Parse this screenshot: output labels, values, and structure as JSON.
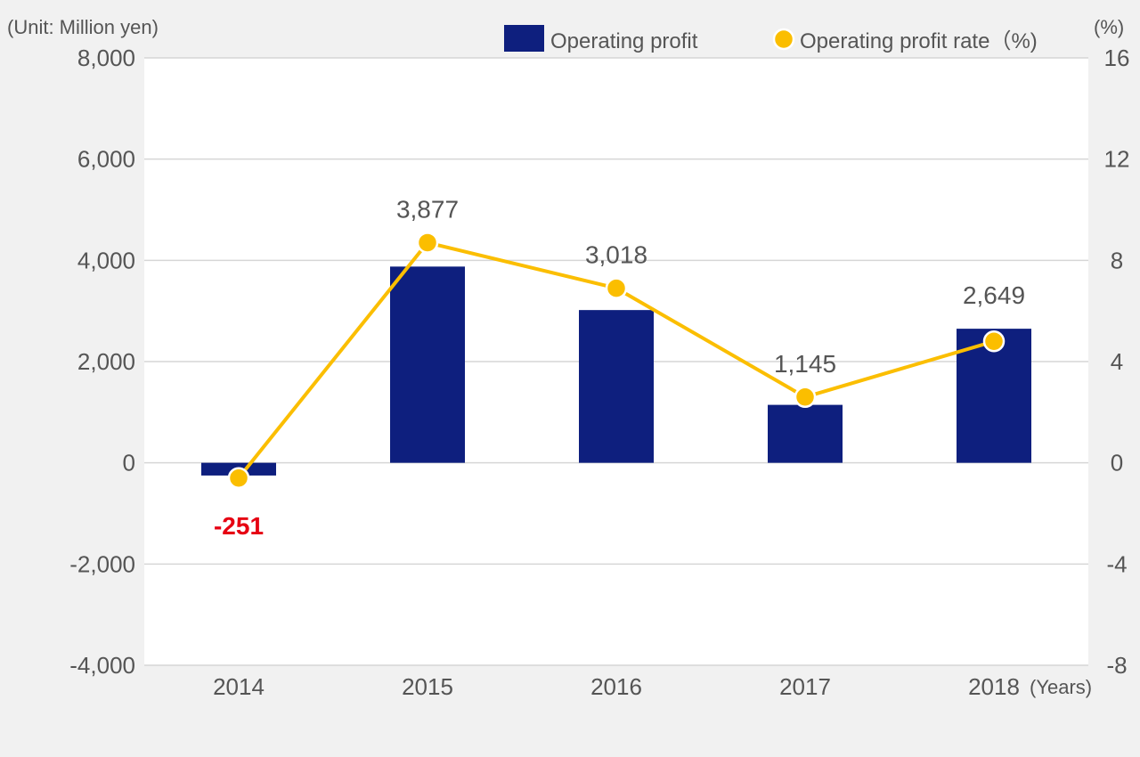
{
  "chart_data": {
    "type": "bar+line",
    "unit_label": "(Unit: Million yen)",
    "right_unit_label": "(%)",
    "x_unit_label": "(Years)",
    "categories": [
      "2014",
      "2015",
      "2016",
      "2017",
      "2018"
    ],
    "series": [
      {
        "name": "Operating profit",
        "type": "bar",
        "axis": "left",
        "values": [
          -251,
          3877,
          3018,
          1145,
          2649
        ],
        "labels": [
          "-251",
          "3,877",
          "3,018",
          "1,145",
          "2,649"
        ]
      },
      {
        "name": "Operating profit rate（%)",
        "type": "line",
        "axis": "right",
        "values": [
          -0.6,
          8.7,
          6.9,
          2.6,
          4.8
        ]
      }
    ],
    "left_axis": {
      "ylim": [
        -4000,
        8000
      ],
      "ticks": [
        -4000,
        -2000,
        0,
        2000,
        4000,
        6000,
        8000
      ],
      "tick_labels": [
        "-4,000",
        "-2,000",
        "0",
        "2,000",
        "4,000",
        "6,000",
        "8,000"
      ]
    },
    "right_axis": {
      "ylim": [
        -8,
        16
      ],
      "ticks": [
        -8,
        -4,
        0,
        4,
        8,
        12,
        16
      ],
      "tick_labels": [
        "-8",
        "-4",
        "0",
        "4",
        "8",
        "12",
        "16"
      ]
    },
    "legend_position": "top-right",
    "grid": true,
    "colors": {
      "bar": "#0e1f7e",
      "line": "#fbbe00",
      "negative_label": "#e60012",
      "grid": "#d6d6d6",
      "plot_bg": "#ffffff"
    }
  }
}
